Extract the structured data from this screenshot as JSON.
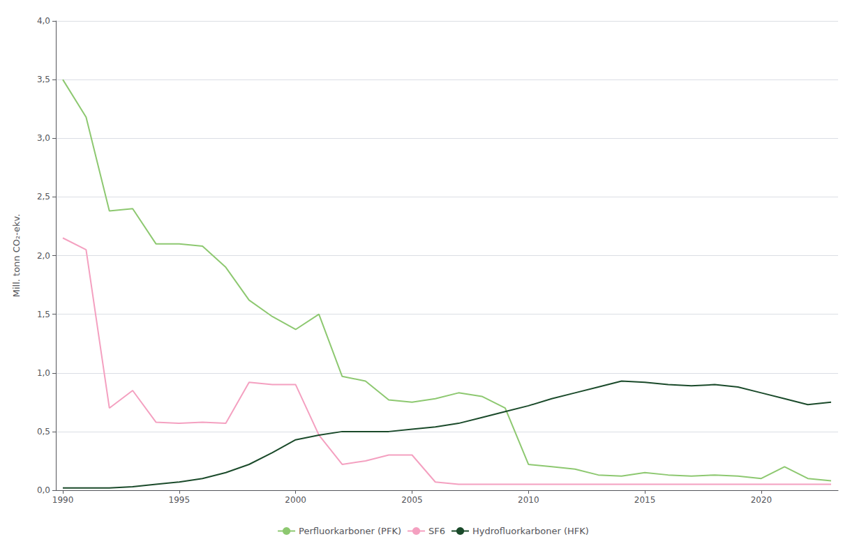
{
  "chart_data": {
    "type": "line",
    "ylabel": "Mill. tonn CO₂-ekv.",
    "x": [
      1990,
      1991,
      1992,
      1993,
      1994,
      1995,
      1996,
      1997,
      1998,
      1999,
      2000,
      2001,
      2002,
      2003,
      2004,
      2005,
      2006,
      2007,
      2008,
      2009,
      2010,
      2011,
      2012,
      2013,
      2014,
      2015,
      2016,
      2017,
      2018,
      2019,
      2020,
      2021,
      2022,
      2023
    ],
    "series": [
      {
        "name": "Perfluorkarboner (PFK)",
        "color": "#8dc870",
        "values": [
          3.5,
          3.18,
          2.38,
          2.4,
          2.1,
          2.1,
          2.08,
          1.9,
          1.62,
          1.48,
          1.37,
          1.5,
          0.97,
          0.93,
          0.77,
          0.75,
          0.78,
          0.83,
          0.8,
          0.7,
          0.22,
          0.2,
          0.18,
          0.13,
          0.12,
          0.15,
          0.13,
          0.12,
          0.13,
          0.12,
          0.1,
          0.2,
          0.1,
          0.08
        ]
      },
      {
        "name": "SF6",
        "color": "#f4a0c0",
        "values": [
          2.15,
          2.05,
          0.7,
          0.85,
          0.58,
          0.57,
          0.58,
          0.57,
          0.92,
          0.9,
          0.9,
          0.47,
          0.22,
          0.25,
          0.3,
          0.3,
          0.07,
          0.05,
          0.05,
          0.05,
          0.05,
          0.05,
          0.05,
          0.05,
          0.05,
          0.05,
          0.05,
          0.05,
          0.05,
          0.05,
          0.05,
          0.05,
          0.05,
          0.05
        ]
      },
      {
        "name": "Hydrofluorkarboner (HFK)",
        "color": "#1a4a2a",
        "values": [
          0.02,
          0.02,
          0.02,
          0.03,
          0.05,
          0.07,
          0.1,
          0.15,
          0.22,
          0.32,
          0.43,
          0.47,
          0.5,
          0.5,
          0.5,
          0.52,
          0.54,
          0.57,
          0.62,
          0.67,
          0.72,
          0.78,
          0.83,
          0.88,
          0.93,
          0.92,
          0.9,
          0.89,
          0.9,
          0.88,
          0.83,
          0.78,
          0.73,
          0.75
        ]
      }
    ],
    "xlim": [
      1989.7,
      2023.3
    ],
    "xticks": [
      1990,
      1995,
      2000,
      2005,
      2010,
      2015,
      2020
    ],
    "ylim": [
      0.0,
      4.0
    ],
    "yticks": [
      {
        "value": 0.0,
        "label": "0,0"
      },
      {
        "value": 0.5,
        "label": "0,5"
      },
      {
        "value": 1.0,
        "label": "1,0"
      },
      {
        "value": 1.5,
        "label": "1,5"
      },
      {
        "value": 2.0,
        "label": "2,0"
      },
      {
        "value": 2.5,
        "label": "2,5"
      },
      {
        "value": 3.0,
        "label": "3,0"
      },
      {
        "value": 3.5,
        "label": "3,5"
      },
      {
        "value": 4.0,
        "label": "4,0"
      }
    ],
    "grid": true,
    "legend": "bottom"
  }
}
